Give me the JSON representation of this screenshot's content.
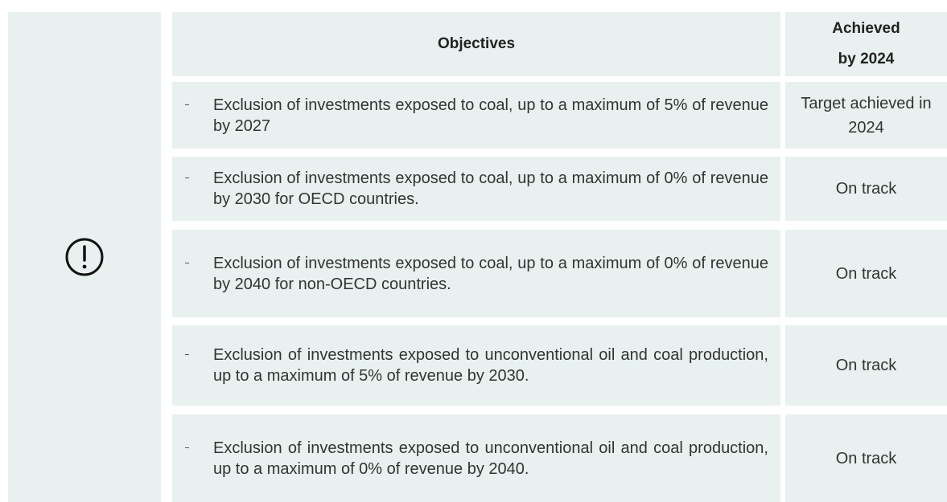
{
  "header": {
    "objectives": "Objectives",
    "achieved": "Achieved by 2024"
  },
  "rows": [
    {
      "objective": "Exclusion of investments exposed to coal, up to a maximum of 5% of revenue by 2027",
      "status": "Target achieved in 2024"
    },
    {
      "objective": "Exclusion of investments exposed to coal, up to a maximum of 0% of revenue by 2030 for OECD countries.",
      "status": "On track"
    },
    {
      "objective": "Exclusion of investments exposed to coal, up to a maximum of 0% of revenue by 2040 for non-OECD countries.",
      "status": "On track"
    },
    {
      "objective": "Exclusion of investments exposed to unconventional oil and coal production, up to a maximum of 5% of revenue by 2030.",
      "status": "On track"
    },
    {
      "objective": "Exclusion of investments exposed to unconventional oil and coal production, up to a maximum of 0% of revenue by 2040.",
      "status": "On track"
    }
  ]
}
